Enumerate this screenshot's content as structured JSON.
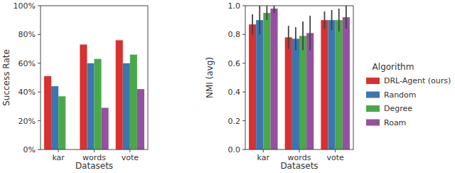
{
  "chart_data": [
    {
      "type": "bar",
      "y_label": "Success Rate",
      "x_label": "Datasets",
      "categories": [
        "kar",
        "words",
        "vote"
      ],
      "ylim": [
        0,
        100
      ],
      "yticks": [
        {
          "value": 0,
          "label": "0%"
        },
        {
          "value": 20,
          "label": "20%"
        },
        {
          "value": 40,
          "label": "40%"
        },
        {
          "value": 60,
          "label": "60%"
        },
        {
          "value": 80,
          "label": "80%"
        },
        {
          "value": 100,
          "label": "100%"
        }
      ],
      "grid": false,
      "series": [
        {
          "name": "DRL-Agent (ours)",
          "color": "#d8312f",
          "values": [
            51,
            73,
            76
          ]
        },
        {
          "name": "Random",
          "color": "#3a76b0",
          "values": [
            44,
            60,
            60
          ]
        },
        {
          "name": "Degree",
          "color": "#4aa84a",
          "values": [
            37,
            63,
            66
          ]
        },
        {
          "name": "Roam",
          "color": "#9550a0",
          "values": [
            0,
            29,
            42
          ]
        }
      ]
    },
    {
      "type": "bar",
      "y_label": "NMI (avg)",
      "x_label": "Datasets",
      "categories": [
        "kar",
        "words",
        "vote"
      ],
      "ylim": [
        0,
        1
      ],
      "yticks": [
        {
          "value": 0,
          "label": "0.0"
        },
        {
          "value": 0.2,
          "label": "0.2"
        },
        {
          "value": 0.4,
          "label": "0.4"
        },
        {
          "value": 0.6,
          "label": "0.6"
        },
        {
          "value": 0.8,
          "label": "0.8"
        },
        {
          "value": 1,
          "label": "1.0"
        }
      ],
      "grid": false,
      "legend": "right",
      "legend_title": "Algorithm",
      "series": [
        {
          "name": "DRL-Agent (ours)",
          "color": "#d8312f",
          "values": [
            0.87,
            0.78,
            0.9
          ],
          "errors": [
            0.07,
            0.08,
            0.06
          ]
        },
        {
          "name": "Random",
          "color": "#3a76b0",
          "values": [
            0.9,
            0.77,
            0.9
          ],
          "errors": [
            0.1,
            0.08,
            0.07
          ]
        },
        {
          "name": "Degree",
          "color": "#4aa84a",
          "values": [
            0.95,
            0.79,
            0.9
          ],
          "errors": [
            0.05,
            0.1,
            0.08
          ]
        },
        {
          "name": "Roam",
          "color": "#9550a0",
          "values": [
            0.98,
            0.81,
            0.92
          ],
          "errors": [
            0.03,
            0.12,
            0.08
          ]
        }
      ]
    }
  ]
}
